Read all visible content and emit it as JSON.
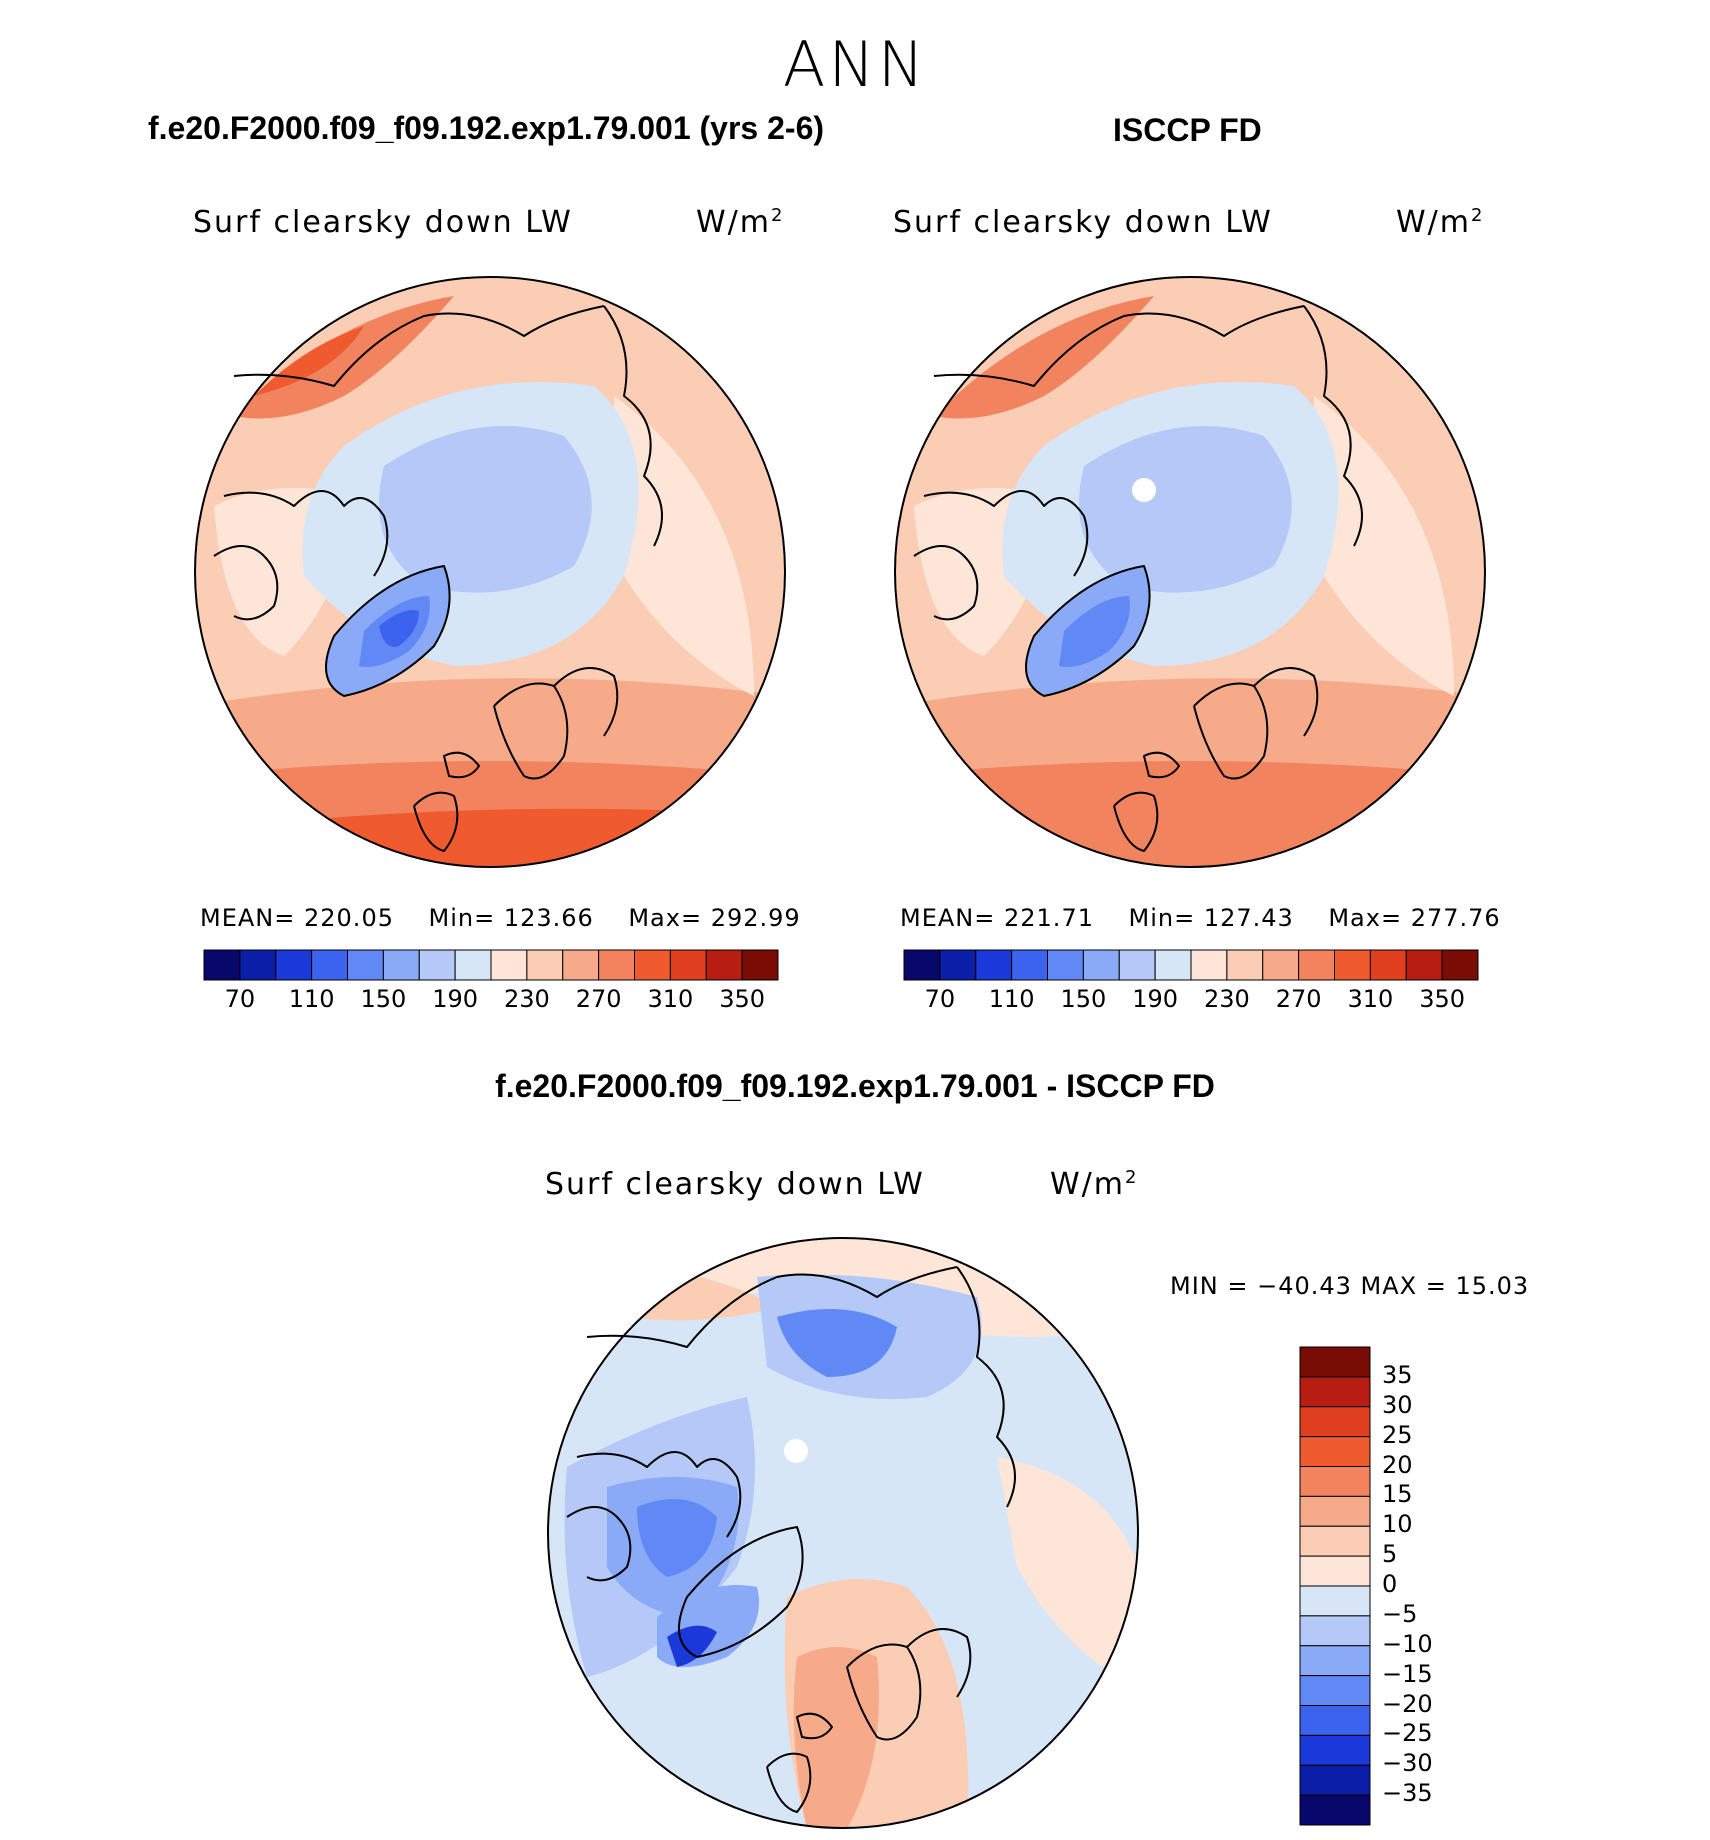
{
  "figure": {
    "title": "ANN",
    "units_label_base": "W/m",
    "units_label_sup": "2",
    "variable": "Surf clearsky down LW"
  },
  "colors": {
    "ocean_outline": "#000000",
    "land_outline": "#111111",
    "missing": "#ffffff"
  },
  "chart_data": [
    {
      "type": "heatmap",
      "projection": "north-polar-stereographic",
      "case": "f.e20.F2000.f09_f09.192.exp1.79.001 (yrs 2-6)",
      "variable": "Surf clearsky down LW",
      "units": "W/m2",
      "mean_label": "MEAN=",
      "mean": "220.05",
      "min_label": "Min=",
      "min": "123.66",
      "max_label": "Max=",
      "max": "292.99",
      "levels": [
        70,
        90,
        110,
        130,
        150,
        170,
        190,
        210,
        230,
        250,
        270,
        290,
        310,
        330,
        350
      ],
      "tick_labels": [
        "70",
        "110",
        "150",
        "190",
        "230",
        "270",
        "310",
        "350"
      ],
      "colormap": [
        "#08086b",
        "#0a1ea8",
        "#1b39d8",
        "#3b63ee",
        "#6189f5",
        "#8aa9f6",
        "#b4c9f7",
        "#d6e6f7",
        "#fde6d8",
        "#fbcdb5",
        "#f7aa8a",
        "#f1845e",
        "#ef5a2f",
        "#e0401f",
        "#b71d10",
        "#7a0c06"
      ]
    },
    {
      "type": "heatmap",
      "projection": "north-polar-stereographic",
      "case": "ISCCP FD",
      "variable": "Surf clearsky down LW",
      "units": "W/m2",
      "mean_label": "MEAN=",
      "mean": "221.71",
      "min_label": "Min=",
      "min": "127.43",
      "max_label": "Max=",
      "max": "277.76",
      "levels": [
        70,
        90,
        110,
        130,
        150,
        170,
        190,
        210,
        230,
        250,
        270,
        290,
        310,
        330,
        350
      ],
      "tick_labels": [
        "70",
        "110",
        "150",
        "190",
        "230",
        "270",
        "310",
        "350"
      ],
      "colormap": [
        "#08086b",
        "#0a1ea8",
        "#1b39d8",
        "#3b63ee",
        "#6189f5",
        "#8aa9f6",
        "#b4c9f7",
        "#d6e6f7",
        "#fde6d8",
        "#fbcdb5",
        "#f7aa8a",
        "#f1845e",
        "#ef5a2f",
        "#e0401f",
        "#b71d10",
        "#7a0c06"
      ]
    },
    {
      "type": "heatmap",
      "projection": "north-polar-stereographic",
      "case": "f.e20.F2000.f09_f09.192.exp1.79.001 - ISCCP FD",
      "variable": "Surf clearsky down LW",
      "units": "W/m2",
      "minmax_label": "MIN = −40.43 MAX =  15.03",
      "min": -40.43,
      "max": 15.03,
      "levels": [
        35,
        30,
        25,
        20,
        15,
        10,
        5,
        0,
        -5,
        -10,
        -15,
        -20,
        -25,
        -30,
        -35
      ],
      "tick_labels": [
        "35",
        "30",
        "25",
        "20",
        "15",
        "10",
        "5",
        "0",
        "−5",
        "−10",
        "−15",
        "−20",
        "−25",
        "−30",
        "−35"
      ],
      "colormap": [
        "#7a0c06",
        "#b71d10",
        "#e0401f",
        "#ef5a2f",
        "#f1845e",
        "#f7aa8a",
        "#fbcdb5",
        "#fde6d8",
        "#d6e6f7",
        "#b4c9f7",
        "#8aa9f6",
        "#6189f5",
        "#3b63ee",
        "#1b39d8",
        "#0a1ea8",
        "#08086b"
      ]
    }
  ]
}
